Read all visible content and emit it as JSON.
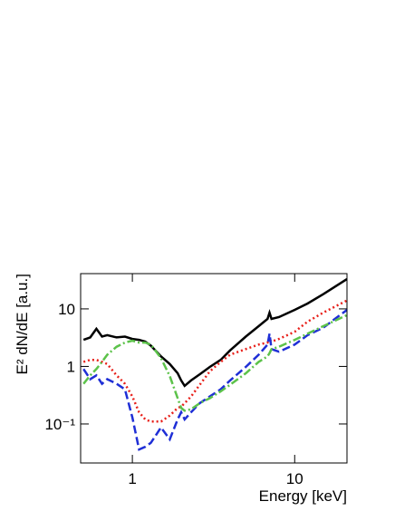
{
  "chart_data": {
    "type": "line",
    "x_label": "Energy [keV]",
    "y_label": "E² dN/dE [a.u.]",
    "x_log": true,
    "y_log": true,
    "xlim": [
      0.48,
      21
    ],
    "ylim": [
      0.021,
      41
    ],
    "xticks": [
      1,
      10
    ],
    "yticks": [
      {
        "value": 0.1,
        "label": "10⁻¹"
      },
      1,
      10
    ],
    "x": [
      0.5,
      0.55,
      0.6,
      0.65,
      0.7,
      0.8,
      0.9,
      1.0,
      1.1,
      1.2,
      1.3,
      1.5,
      1.7,
      1.9,
      2.0,
      2.1,
      2.3,
      2.6,
      3,
      3.5,
      4,
      5,
      6,
      6.8,
      7.0,
      7.2,
      8,
      10,
      12,
      15,
      21
    ],
    "series": [
      {
        "color": "#000000",
        "dash": "solid",
        "values": [
          2.9,
          3.2,
          4.5,
          3.3,
          3.5,
          3.2,
          3.3,
          3.0,
          2.9,
          2.7,
          2.3,
          1.5,
          1.1,
          0.76,
          0.57,
          0.46,
          0.57,
          0.73,
          0.98,
          1.3,
          1.9,
          3.3,
          5,
          6.7,
          8.6,
          6.7,
          7.2,
          9.6,
          12.4,
          18,
          33
        ]
      },
      {
        "color": "#e8201a",
        "dash": "dotted",
        "values": [
          1.2,
          1.3,
          1.3,
          1.2,
          1.1,
          0.7,
          0.5,
          0.3,
          0.16,
          0.12,
          0.11,
          0.11,
          0.14,
          0.19,
          0.2,
          0.23,
          0.3,
          0.48,
          0.82,
          1.2,
          1.6,
          2.0,
          2.4,
          2.6,
          2.9,
          2.7,
          3.0,
          4.0,
          6.0,
          8.6,
          14
        ]
      },
      {
        "color": "#1f2fd6",
        "dash": "dashed",
        "values": [
          0.9,
          0.6,
          0.7,
          0.5,
          0.6,
          0.5,
          0.4,
          0.13,
          0.036,
          0.04,
          0.047,
          0.087,
          0.054,
          0.12,
          0.16,
          0.12,
          0.16,
          0.23,
          0.3,
          0.4,
          0.57,
          0.98,
          1.6,
          2.4,
          3.7,
          2.0,
          1.8,
          2.4,
          3.5,
          4.7,
          9.6
        ]
      },
      {
        "color": "#5cc24a",
        "dash": "dashdot",
        "values": [
          0.5,
          0.7,
          0.9,
          1.2,
          1.6,
          2.2,
          2.6,
          2.8,
          2.6,
          2.6,
          2.4,
          1.4,
          0.68,
          0.28,
          0.19,
          0.17,
          0.18,
          0.23,
          0.28,
          0.37,
          0.48,
          0.76,
          1.2,
          1.5,
          1.7,
          2.0,
          2.2,
          2.9,
          3.7,
          5.0,
          7.8
        ]
      }
    ]
  }
}
